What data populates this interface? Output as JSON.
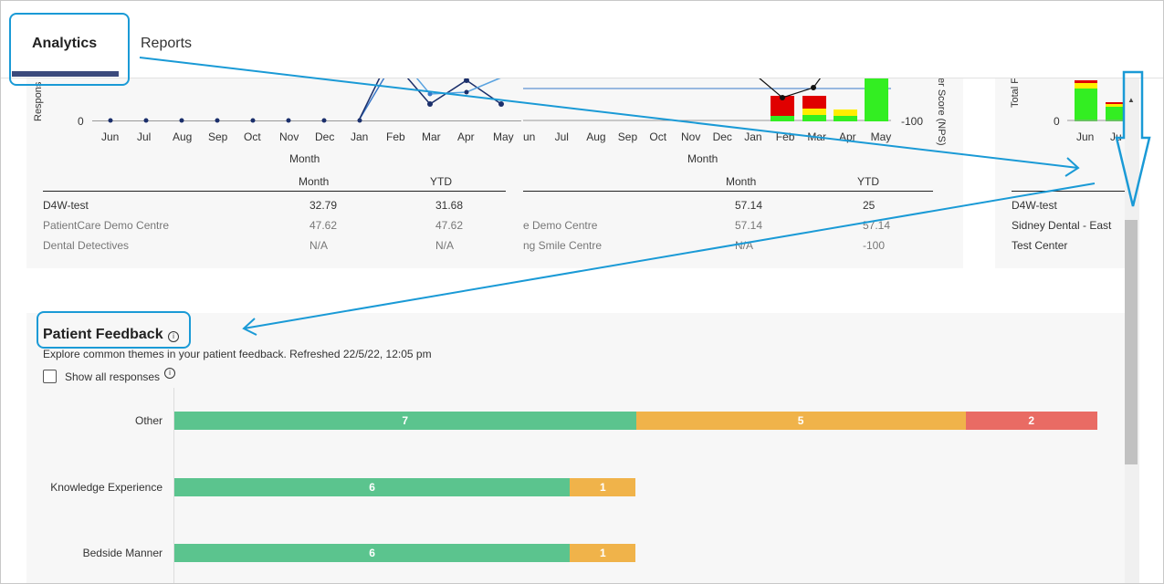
{
  "tabs": {
    "analytics": "Analytics",
    "reports": "Reports"
  },
  "chart1": {
    "ylabel": "Respons",
    "ytick0": "0",
    "months": [
      "Jun",
      "Jul",
      "Aug",
      "Sep",
      "Oct",
      "Nov",
      "Dec",
      "Jan",
      "Feb",
      "Mar",
      "Apr",
      "May"
    ],
    "xlabel": "Month"
  },
  "chart2": {
    "months": [
      "Jun",
      "Jul",
      "Aug",
      "Sep",
      "Oct",
      "Nov",
      "Dec",
      "Jan",
      "Feb",
      "Mar",
      "Apr",
      "May"
    ],
    "first_month_partial": "un",
    "xlabel": "Month",
    "y2label": "er Score (NPS)",
    "y2tick": "-100"
  },
  "chart3": {
    "ylabel": "Total F",
    "ytick0": "0",
    "months": [
      "Jun",
      "Ju"
    ]
  },
  "table1": {
    "col_month": "Month",
    "col_ytd": "YTD",
    "rows": [
      {
        "name": "D4W-test",
        "month": "32.79",
        "ytd": "31.68"
      },
      {
        "name": "PatientCare Demo Centre",
        "month": "47.62",
        "ytd": "47.62"
      },
      {
        "name": "Dental Detectives",
        "month": "N/A",
        "ytd": "N/A"
      }
    ]
  },
  "table2": {
    "col_month": "Month",
    "col_ytd": "YTD",
    "rows": [
      {
        "name": "",
        "month": "57.14",
        "ytd": "25"
      },
      {
        "name": "e Demo Centre",
        "month": "57.14",
        "ytd": "57.14"
      },
      {
        "name": "ng Smile Centre",
        "month": "N/A",
        "ytd": "-100"
      }
    ]
  },
  "table3": {
    "rows": [
      "D4W-test",
      "Sidney Dental - East",
      "Test Center"
    ]
  },
  "feedback": {
    "title": "Patient Feedback",
    "subtitle": "Explore common themes in your patient feedback. Refreshed 22/5/22, 12:05 pm",
    "show_all": "Show all responses",
    "info_glyph": "i"
  },
  "chart_data": {
    "type": "bar",
    "orientation": "horizontal-stacked",
    "categories": [
      "Other",
      "Knowledge Experience",
      "Bedside Manner"
    ],
    "series": [
      {
        "values": [
          7,
          6,
          6
        ],
        "color": "#5bc48e"
      },
      {
        "values": [
          5,
          1,
          1
        ],
        "color": "#f0b34a"
      },
      {
        "values": [
          2,
          0,
          0
        ],
        "color": "#e96b64"
      }
    ]
  },
  "scroll_arrow_glyph": "▲"
}
